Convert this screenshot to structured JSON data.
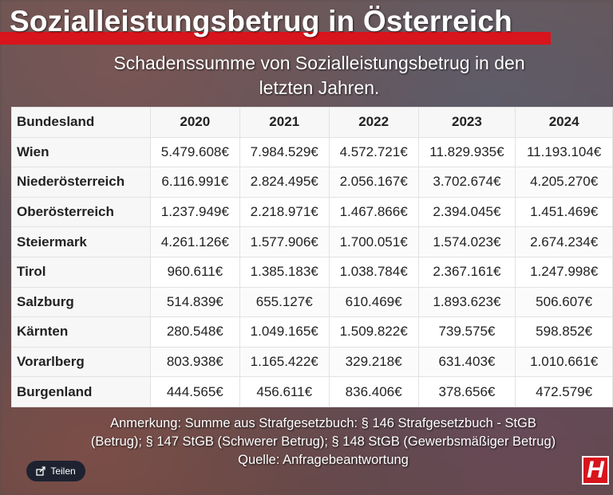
{
  "header": {
    "title": "Sozialleistungsbetrug in Österreich",
    "subtitle_line1": "Schadenssumme von Sozialleistungsbetrug in den",
    "subtitle_line2": "letzten Jahren."
  },
  "chart_data": {
    "type": "table",
    "title": "Sozialleistungsbetrug in Österreich",
    "subtitle": "Schadenssumme von Sozialleistungsbetrug in den letzten Jahren.",
    "columns": [
      "Bundesland",
      "2020",
      "2021",
      "2022",
      "2023",
      "2024"
    ],
    "rows": [
      {
        "region": "Wien",
        "values": [
          "5.479.608€",
          "7.984.529€",
          "4.572.721€",
          "11.829.935€",
          "11.193.104€"
        ]
      },
      {
        "region": "Niederösterreich",
        "values": [
          "6.116.991€",
          "2.824.495€",
          "2.056.167€",
          "3.702.674€",
          "4.205.270€"
        ]
      },
      {
        "region": "Oberösterreich",
        "values": [
          "1.237.949€",
          "2.218.971€",
          "1.467.866€",
          "2.394.045€",
          "1.451.469€"
        ]
      },
      {
        "region": "Steiermark",
        "values": [
          "4.261.126€",
          "1.577.906€",
          "1.700.051€",
          "1.574.023€",
          "2.674.234€"
        ]
      },
      {
        "region": "Tirol",
        "values": [
          "960.611€",
          "1.385.183€",
          "1.038.784€",
          "2.367.161€",
          "1.247.998€"
        ]
      },
      {
        "region": "Salzburg",
        "values": [
          "514.839€",
          "655.127€",
          "610.469€",
          "1.893.623€",
          "506.607€"
        ]
      },
      {
        "region": "Kärnten",
        "values": [
          "280.548€",
          "1.049.165€",
          "1.509.822€",
          "739.575€",
          "598.852€"
        ]
      },
      {
        "region": "Vorarlberg",
        "values": [
          "803.938€",
          "1.165.422€",
          "329.218€",
          "631.403€",
          "1.010.661€"
        ]
      },
      {
        "region": "Burgenland",
        "values": [
          "444.565€",
          "456.611€",
          "836.406€",
          "378.656€",
          "472.579€"
        ]
      }
    ]
  },
  "footer": {
    "note_line1": "Anmerkung: Summe aus Strafgesetzbuch: § 146 Strafgesetzbuch - StGB",
    "note_line2": "(Betrug); § 147 StGB (Schwerer Betrug); § 148 StGB (Gewerbsmäßiger Betrug)",
    "source": "Quelle: Anfragebeantwortung",
    "share_label": "Teilen",
    "share_icon": "share-icon",
    "logo_text": "H"
  },
  "colors": {
    "accent_red": "#d8141c",
    "share_bg": "#1e2230"
  }
}
